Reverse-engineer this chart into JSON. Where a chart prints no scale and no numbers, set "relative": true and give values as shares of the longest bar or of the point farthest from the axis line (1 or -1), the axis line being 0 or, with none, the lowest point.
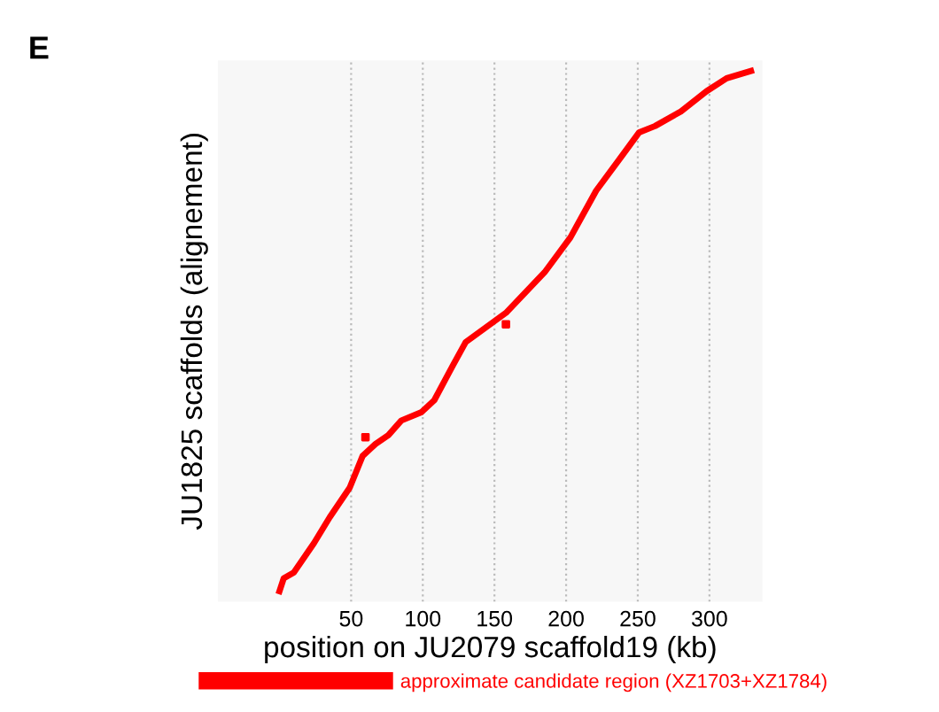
{
  "chart_data": {
    "type": "line",
    "title": "E",
    "xlabel": "position on JU2079 scaffold19 (kb)",
    "ylabel": "JU1825 scaffolds (alignement)",
    "relative": true,
    "xlim": [
      -43,
      337
    ],
    "xticks": [
      50,
      100,
      150,
      200,
      250,
      300
    ],
    "grid": "x",
    "legend": "bottom",
    "marker": "none",
    "line_style": "solid",
    "series": [
      {
        "name": "approximate candidate region (XZ1703+XZ1784)",
        "color": "#ff0000",
        "x": [
          0,
          3,
          10,
          24,
          35,
          49,
          58,
          67,
          76,
          85,
          99,
          108,
          121,
          130,
          158,
          185,
          203,
          221,
          239,
          251,
          262,
          280,
          298,
          312,
          329
        ],
        "values": [
          0,
          0.025,
          0.036,
          0.092,
          0.142,
          0.199,
          0.26,
          0.283,
          0.3,
          0.328,
          0.344,
          0.367,
          0.434,
          0.479,
          0.535,
          0.613,
          0.68,
          0.77,
          0.837,
          0.882,
          0.894,
          0.922,
          0.961,
          0.986,
          1.0
        ]
      },
      {
        "type": "scatter",
        "marker": "square",
        "color": "#ff0000",
        "x": [
          60,
          158
        ],
        "values": [
          0.296,
          0.513
        ]
      }
    ]
  }
}
